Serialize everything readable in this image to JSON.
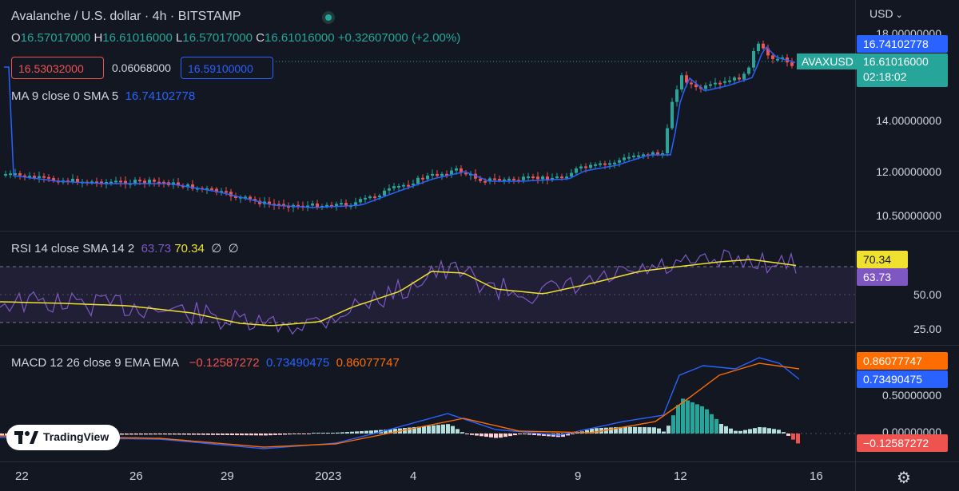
{
  "header": {
    "title": "Avalanche / U.S. dollar · 4h · BITSTAMP",
    "currency": "USD",
    "status_color": "#26a69a"
  },
  "ohlc": {
    "o_label": "O",
    "o": "16.57017000",
    "h_label": "H",
    "h": "16.61016000",
    "l_label": "L",
    "l": "16.57017000",
    "c_label": "C",
    "c": "16.61016000",
    "change": "+0.32607000 (+2.00%)"
  },
  "order": {
    "sell": "16.53032000",
    "spread": "0.06068000",
    "buy": "16.59100000"
  },
  "ma": {
    "label": "MA 9 close 0 SMA 5",
    "value": "16.74102778"
  },
  "price_axis": {
    "labels": [
      "18.00000000",
      "14.00000000",
      "12.00000000",
      "10.50000000"
    ],
    "ma_tag": "16.74102778",
    "price_tag": "16.61016000",
    "countdown": "02:18:02",
    "symbol_tag": "AVAXUSD"
  },
  "rsi": {
    "label": "RSI 14 close SMA 14 2",
    "value": "63.73",
    "sma": "70.34",
    "extra1": "∅",
    "extra2": "∅",
    "axis": [
      "50.00",
      "25.00"
    ],
    "tag_sma": "70.34",
    "tag_rsi": "63.73"
  },
  "macd": {
    "label": "MACD 12 26 close 9 EMA EMA",
    "hist": "−0.12587272",
    "macd": "0.73490475",
    "signal": "0.86077747",
    "axis": [
      "0.50000000",
      "0.00000000"
    ],
    "tag_signal": "0.86077747",
    "tag_macd": "0.73490475",
    "tag_hist": "−0.12587272"
  },
  "time_axis": [
    "22",
    "26",
    "29",
    "2023",
    "4",
    "9",
    "12",
    "16"
  ],
  "branding": {
    "name": "TradingView"
  },
  "colors": {
    "up": "#26a69a",
    "down": "#ef5350",
    "ma": "#2962ff",
    "rsi": "#7e57c2",
    "rsi_sma": "#f0e130",
    "macd": "#2962ff",
    "signal": "#ff6d00"
  }
}
